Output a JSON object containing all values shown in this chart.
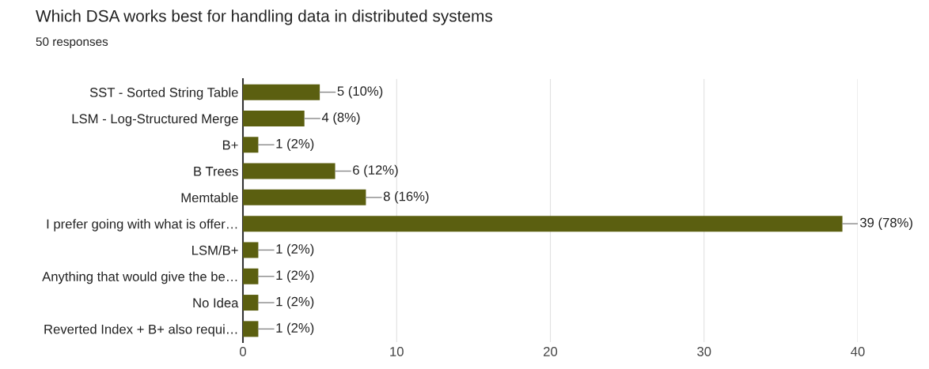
{
  "chart_data": {
    "type": "bar",
    "orientation": "horizontal",
    "title": "Which DSA works best for handling data in distributed systems",
    "subtitle": "50 responses",
    "categories": [
      "SST - Sorted String Table",
      "LSM - Log-Structured Merge",
      "B+",
      "B Trees",
      "Memtable",
      "I prefer going with what is offer…",
      "LSM/B+",
      "Anything that would give the be…",
      "No Idea",
      "Reverted Index + B+ also requi…"
    ],
    "values": [
      5,
      4,
      1,
      6,
      8,
      39,
      1,
      1,
      1,
      1
    ],
    "value_labels": [
      "5 (10%)",
      "4 (8%)",
      "1 (2%)",
      "6 (12%)",
      "8 (16%)",
      "39 (78%)",
      "1 (2%)",
      "1 (2%)",
      "1 (2%)",
      "1 (2%)"
    ],
    "color": "#5b5f10",
    "xlim": [
      0,
      40
    ],
    "xticks": [
      0,
      10,
      20,
      30,
      40
    ],
    "grid": "x"
  }
}
